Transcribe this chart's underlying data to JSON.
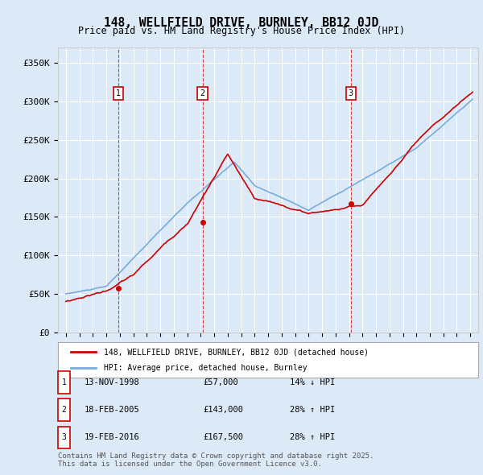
{
  "title": "148, WELLFIELD DRIVE, BURNLEY, BB12 0JD",
  "subtitle": "Price paid vs. HM Land Registry's House Price Index (HPI)",
  "xlabel": "",
  "ylabel": "",
  "ylim": [
    0,
    370000
  ],
  "yticks": [
    0,
    50000,
    100000,
    150000,
    200000,
    250000,
    300000,
    350000
  ],
  "ytick_labels": [
    "£0",
    "£50K",
    "£100K",
    "£150K",
    "£200K",
    "£250K",
    "£300K",
    "£350K"
  ],
  "background_color": "#dce9f7",
  "plot_bg_color": "#dce9f7",
  "grid_color": "#ffffff",
  "hpi_color": "#7aabdc",
  "price_color": "#cc0000",
  "sale_marker_color": "#cc0000",
  "dashed_line_color": "#cc0000",
  "transaction_box_color": "#cc0000",
  "sales": [
    {
      "date": "1998-11-13",
      "price": 57000,
      "label": "1",
      "hpi_diff": "14% ↓ HPI",
      "display_date": "13-NOV-1998"
    },
    {
      "date": "2005-02-18",
      "price": 143000,
      "label": "2",
      "hpi_diff": "28% ↑ HPI",
      "display_date": "18-FEB-2005"
    },
    {
      "date": "2016-02-19",
      "price": 167500,
      "label": "3",
      "hpi_diff": "28% ↑ HPI",
      "display_date": "19-FEB-2016"
    }
  ],
  "legend_property_label": "148, WELLFIELD DRIVE, BURNLEY, BB12 0JD (detached house)",
  "legend_hpi_label": "HPI: Average price, detached house, Burnley",
  "footer": "Contains HM Land Registry data © Crown copyright and database right 2025.\nThis data is licensed under the Open Government Licence v3.0.",
  "table_rows": [
    [
      "1",
      "13-NOV-1998",
      "£57,000",
      "14% ↓ HPI"
    ],
    [
      "2",
      "18-FEB-2005",
      "£143,000",
      "28% ↑ HPI"
    ],
    [
      "3",
      "19-FEB-2016",
      "£167,500",
      "28% ↑ HPI"
    ]
  ]
}
